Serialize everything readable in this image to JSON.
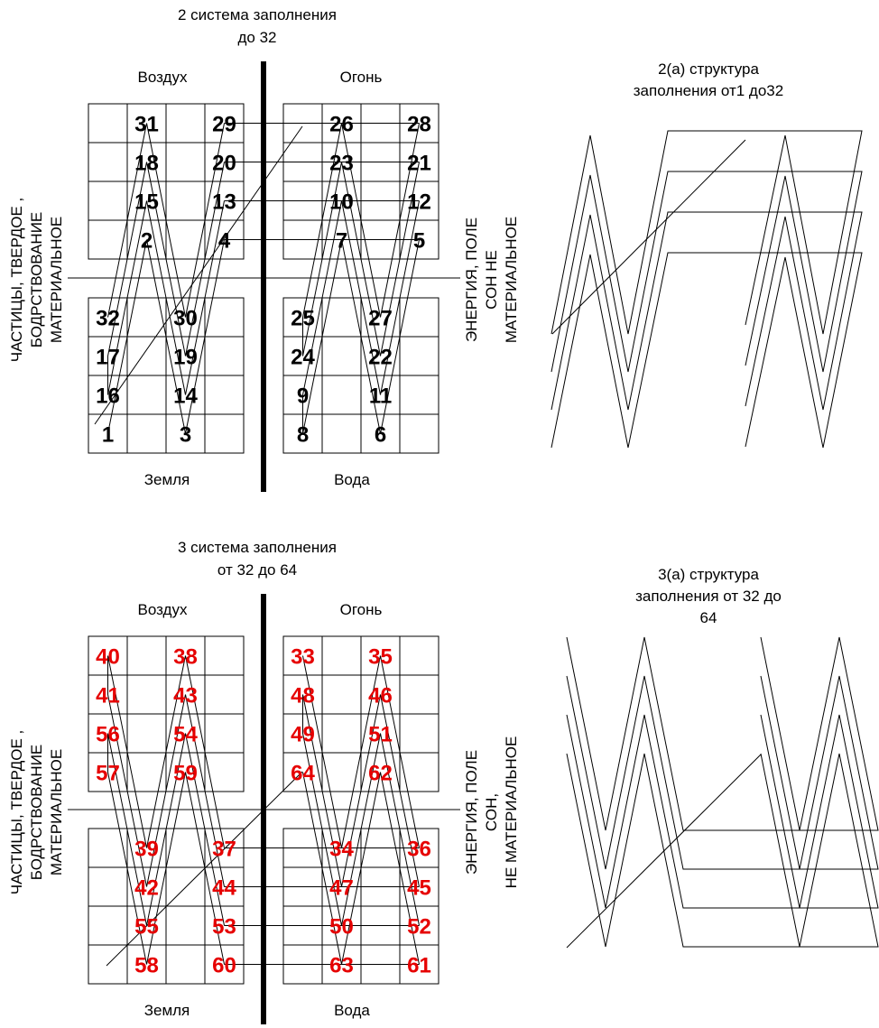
{
  "diagrams": [
    {
      "title": [
        "2 система  заполнения",
        "до 32"
      ],
      "quadrants": {
        "top_left": "Воздух",
        "top_right": "Огонь",
        "bottom_left": "Земля",
        "bottom_right": "Вода"
      },
      "left_side": [
        "ЧАСТИЦЫ, ТВЕРДОЕ ,",
        "БОДРСТВОВАНИЕ",
        "МАТЕРИАЛЬНОЕ"
      ],
      "right_side": [
        "ЭНЕРГИЯ, ПОЛЕ",
        "СОН НЕ",
        "МАТЕРИАЛЬНОЕ"
      ],
      "number_color": "#000000",
      "grids": {
        "top_left": [
          [
            "",
            "31",
            "",
            "29"
          ],
          [
            "",
            "18",
            "",
            "20"
          ],
          [
            "",
            "15",
            "",
            "13"
          ],
          [
            "",
            "2",
            "",
            "4"
          ]
        ],
        "top_right": [
          [
            "",
            "26",
            "",
            "28"
          ],
          [
            "",
            "23",
            "",
            "21"
          ],
          [
            "",
            "10",
            "",
            "12"
          ],
          [
            "",
            "7",
            "",
            "5"
          ]
        ],
        "bottom_left": [
          [
            "32",
            "",
            "30",
            ""
          ],
          [
            "17",
            "",
            "19",
            ""
          ],
          [
            "16",
            "",
            "14",
            ""
          ],
          [
            "1",
            "",
            "3",
            ""
          ]
        ],
        "bottom_right": [
          [
            "25",
            "",
            "27",
            ""
          ],
          [
            "24",
            "",
            "22",
            ""
          ],
          [
            "9",
            "",
            "11",
            ""
          ],
          [
            "8",
            "",
            "6",
            ""
          ]
        ]
      },
      "structure_title": [
        "2(а) структура",
        "заполнения от1 до32"
      ]
    },
    {
      "title": [
        "3 система  заполнения",
        "от 32 до 64"
      ],
      "quadrants": {
        "top_left": "Воздух",
        "top_right": "Огонь",
        "bottom_left": "Земля",
        "bottom_right": "Вода"
      },
      "left_side": [
        "ЧАСТИЦЫ, ТВЕРДОЕ ,",
        "БОДРСТВОВАНИЕ",
        "МАТЕРИАЛЬНОЕ"
      ],
      "right_side": [
        "ЭНЕРГИЯ, ПОЛЕ",
        "СОН,",
        "НЕ МАТЕРИАЛЬНОЕ"
      ],
      "number_color": "#e60000",
      "grids": {
        "top_left": [
          [
            "40",
            "",
            "38",
            ""
          ],
          [
            "41",
            "",
            "43",
            ""
          ],
          [
            "56",
            "",
            "54",
            ""
          ],
          [
            "57",
            "",
            "59",
            ""
          ]
        ],
        "top_right": [
          [
            "33",
            "",
            "35",
            ""
          ],
          [
            "48",
            "",
            "46",
            ""
          ],
          [
            "49",
            "",
            "51",
            ""
          ],
          [
            "64",
            "",
            "62",
            ""
          ]
        ],
        "bottom_left": [
          [
            "",
            "39",
            "",
            "37"
          ],
          [
            "",
            "42",
            "",
            "44"
          ],
          [
            "",
            "55",
            "",
            "53"
          ],
          [
            "",
            "58",
            "",
            "60"
          ]
        ],
        "bottom_right": [
          [
            "",
            "34",
            "",
            "36"
          ],
          [
            "",
            "47",
            "",
            "45"
          ],
          [
            "",
            "50",
            "",
            "52"
          ],
          [
            "",
            "63",
            "",
            "61"
          ]
        ]
      },
      "structure_title": [
        "3(а) структура",
        "заполнения от 32 до",
        "64"
      ]
    }
  ]
}
